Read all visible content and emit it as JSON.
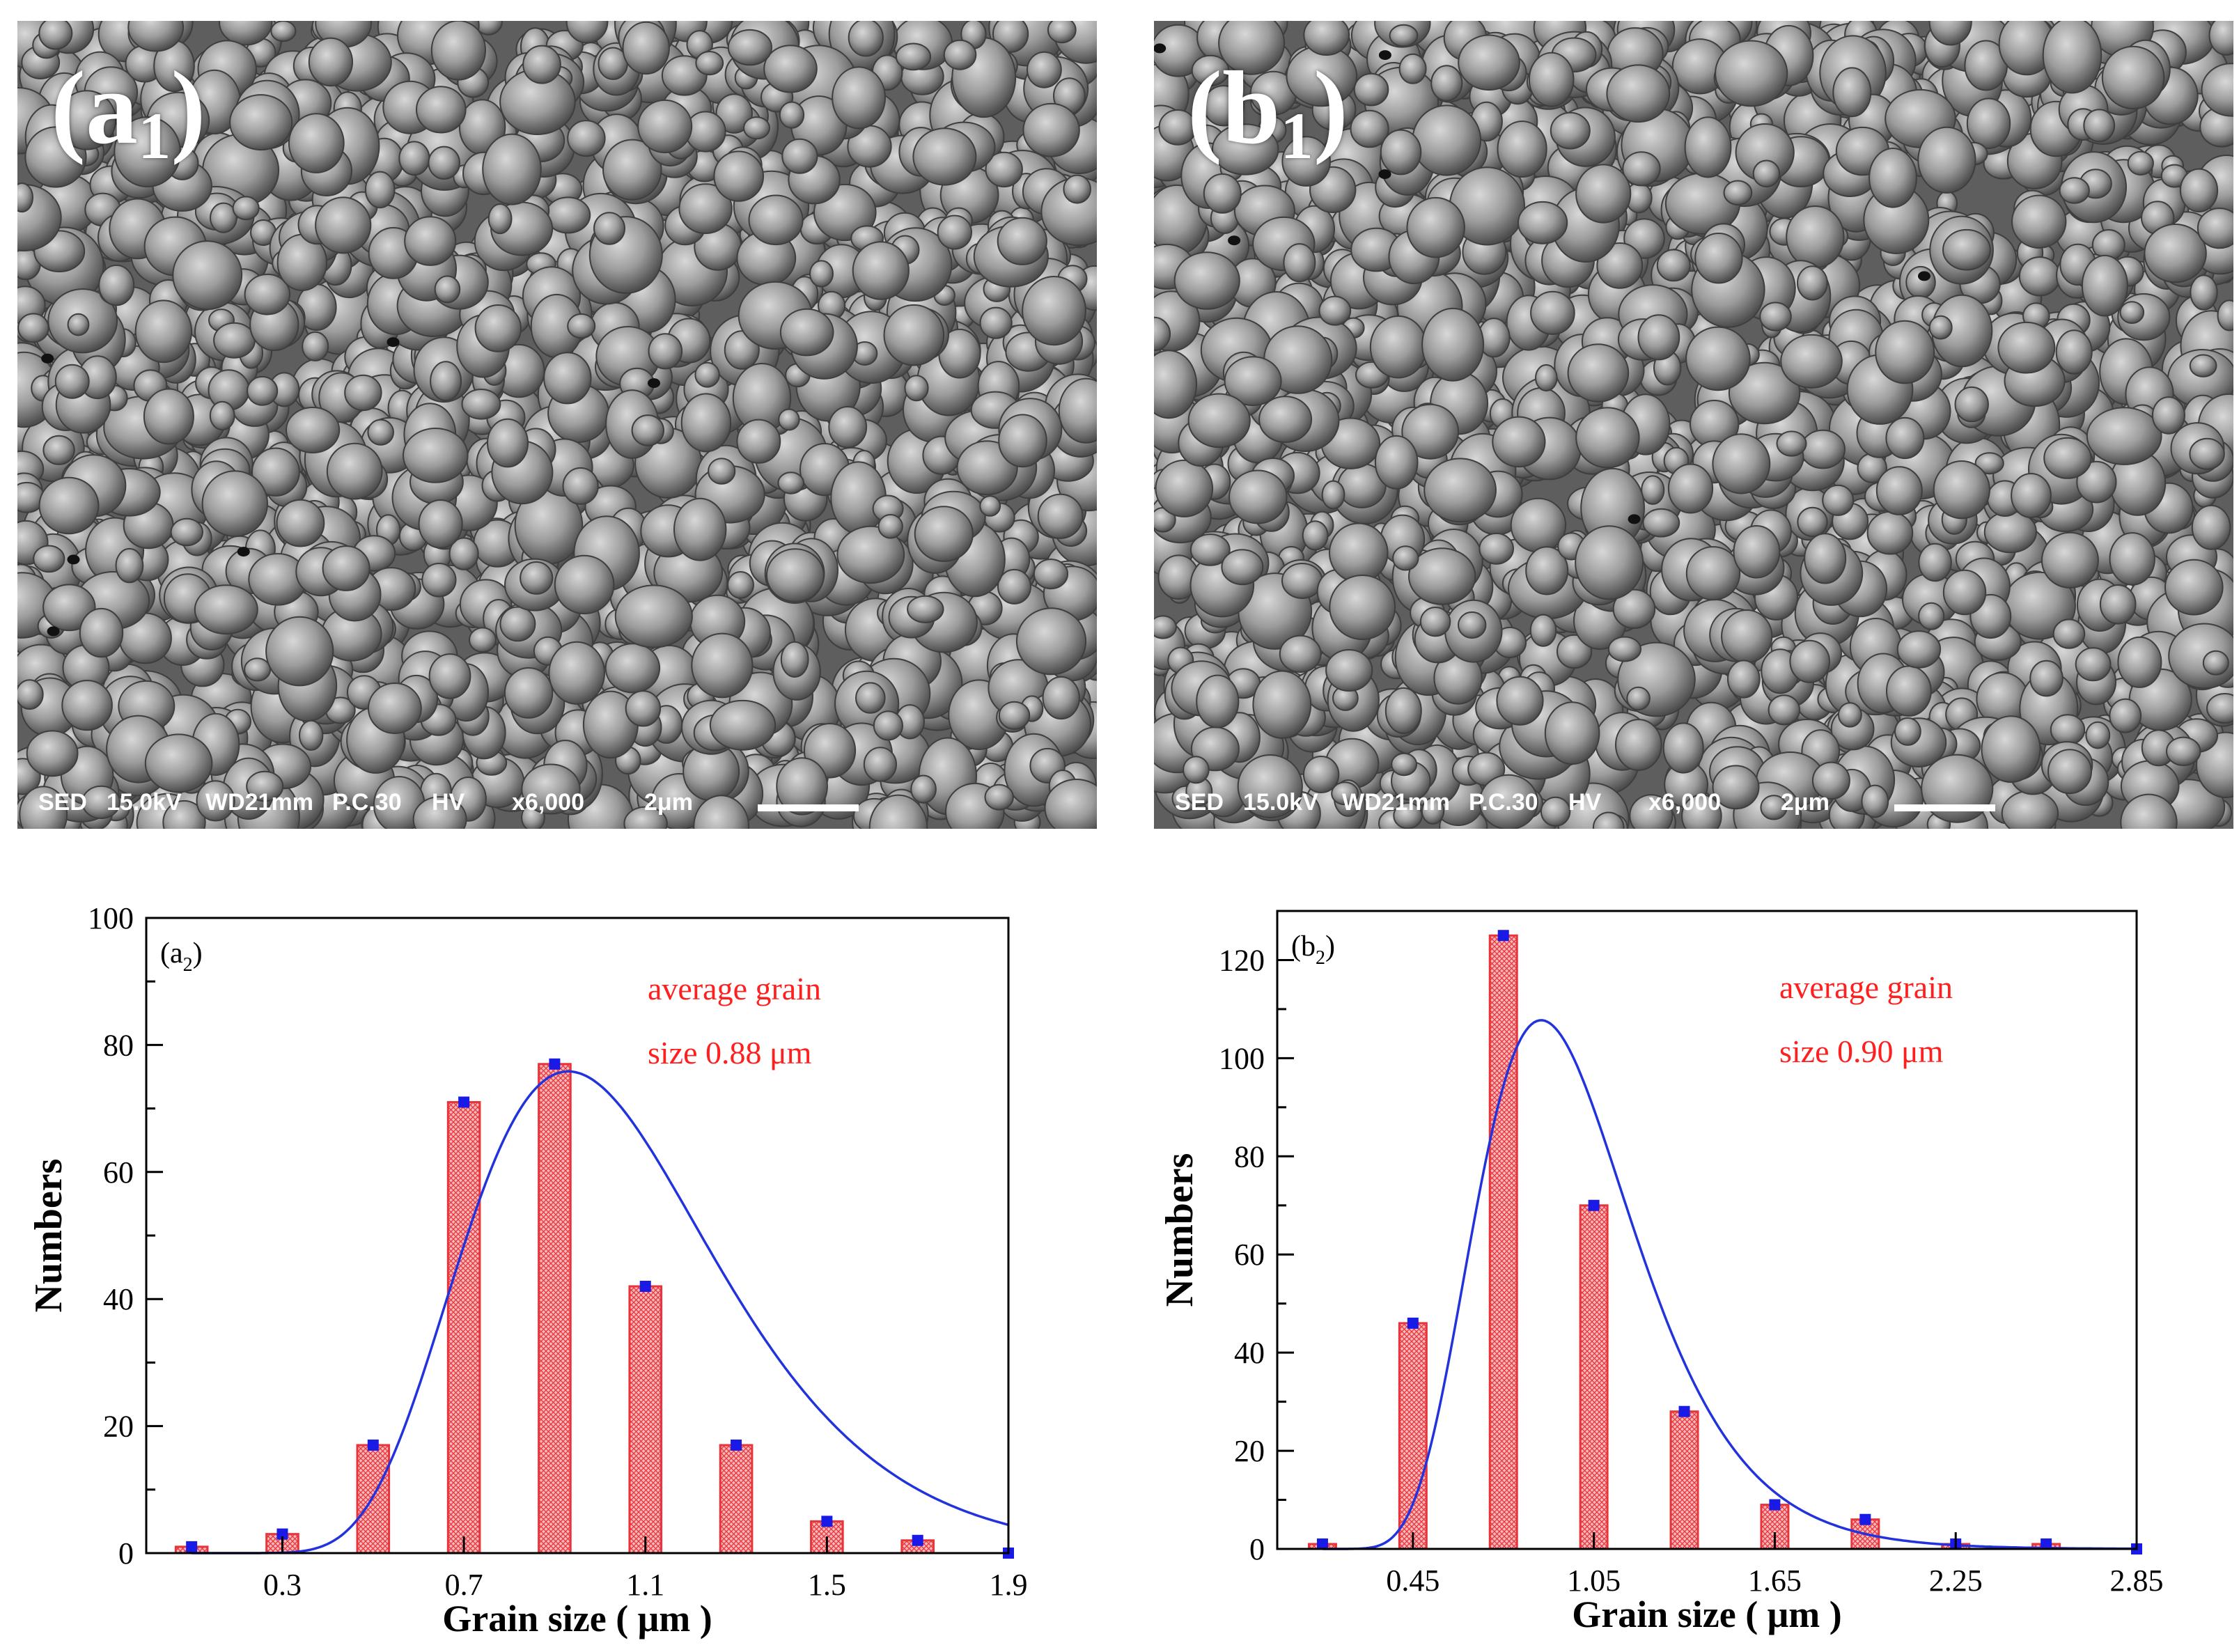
{
  "panels": [
    {
      "label_main": "(a",
      "label_sub": "1",
      "label_close": ")",
      "databar": {
        "detector": "SED",
        "voltage": "15.0kV",
        "wd": "WD21mm",
        "pc": "P.C.30",
        "mode": "HV",
        "mag": "x6,000",
        "scale": "2μm"
      }
    },
    {
      "label_main": "(b",
      "label_sub": "1",
      "label_close": ")",
      "databar": {
        "detector": "SED",
        "voltage": "15.0kV",
        "wd": "WD21mm",
        "pc": "P.C.30",
        "mode": "HV",
        "mag": "x6,000",
        "scale": "2μm"
      }
    }
  ],
  "chart_data": [
    {
      "type": "bar",
      "panel_label": "(a",
      "panel_sub": "2",
      "panel_close": ")",
      "annotation_line1": "average grain",
      "annotation_line2": "size 0.88 μm",
      "xlabel": "Grain size ( μm )",
      "ylabel": "Numbers",
      "xlim": [
        0.0,
        1.9
      ],
      "ylim": [
        0,
        100
      ],
      "xticks": [
        0.3,
        0.7,
        1.1,
        1.5,
        1.9
      ],
      "xtick_labels": [
        "0.3",
        "0.7",
        "1.1",
        "1.5",
        "1.9"
      ],
      "yticks": [
        0,
        20,
        40,
        60,
        80,
        100
      ],
      "ytick_labels": [
        "0",
        "20",
        "40",
        "60",
        "80",
        "100"
      ],
      "bar_width": 0.07,
      "x": [
        0.1,
        0.3,
        0.5,
        0.7,
        0.9,
        1.1,
        1.3,
        1.5,
        1.7,
        1.9
      ],
      "values": [
        1,
        3,
        17,
        71,
        77,
        42,
        17,
        5,
        2,
        0
      ],
      "fit": {
        "type": "log-normal",
        "peak_x": 0.85,
        "peak_y": 72.5
      },
      "colors": {
        "bar": "#e8343a",
        "bar_fill": "#f7b9bb",
        "marker": "#1a1ae6",
        "fit": "#2233dd",
        "annotation": "#ff1f1f"
      }
    },
    {
      "type": "bar",
      "panel_label": "(b",
      "panel_sub": "2",
      "panel_close": ")",
      "annotation_line1": "average grain",
      "annotation_line2": "size 0.90 μm",
      "xlabel": "Grain size ( μm )",
      "ylabel": "Numbers",
      "xlim": [
        0.0,
        2.85
      ],
      "ylim": [
        0,
        130
      ],
      "xticks": [
        0.45,
        1.05,
        1.65,
        2.25,
        2.85
      ],
      "xtick_labels": [
        "0.45",
        "1.05",
        "1.65",
        "2.25",
        "2.85"
      ],
      "yticks": [
        0,
        20,
        40,
        60,
        80,
        100,
        120
      ],
      "ytick_labels": [
        "0",
        "20",
        "40",
        "60",
        "80",
        "100",
        "120"
      ],
      "bar_width": 0.09,
      "x": [
        0.15,
        0.45,
        0.75,
        1.05,
        1.35,
        1.65,
        1.95,
        2.25,
        2.55,
        2.85
      ],
      "values": [
        1,
        46,
        125,
        70,
        28,
        9,
        6,
        1,
        1,
        0
      ],
      "fit": {
        "type": "log-normal",
        "peak_x": 0.8,
        "peak_y": 103
      },
      "colors": {
        "bar": "#e8343a",
        "bar_fill": "#f7b9bb",
        "marker": "#1a1ae6",
        "fit": "#2233dd",
        "annotation": "#ff1f1f"
      }
    }
  ]
}
